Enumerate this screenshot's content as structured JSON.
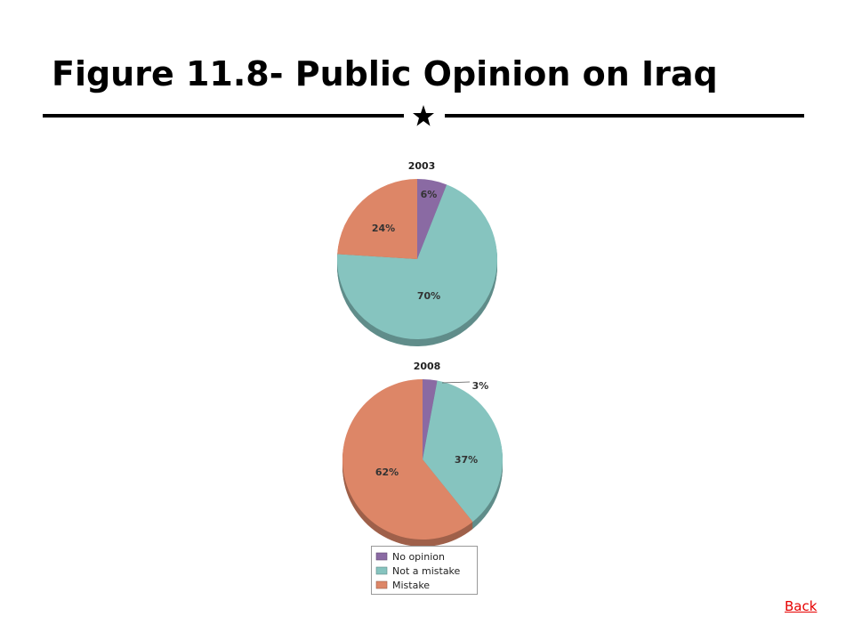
{
  "slide": {
    "title": "Figure 11.8- Public Opinion on Iraq",
    "back_link": "Back",
    "divider_icon": "star-icon"
  },
  "chart_data": {
    "type": "pie",
    "categories": [
      "No opinion",
      "Not a mistake",
      "Mistake"
    ],
    "colors": {
      "No opinion": "#8a6aa3",
      "Not a mistake": "#86c4bf",
      "Mistake": "#dd8667"
    },
    "legend_placement": "bottom-center",
    "charts": [
      {
        "title": "2003",
        "values": [
          6,
          70,
          24
        ],
        "labels": [
          "6%",
          "70%",
          "24%"
        ]
      },
      {
        "title": "2008",
        "values": [
          3,
          37,
          62
        ],
        "labels": [
          "3%",
          "37%",
          "62%"
        ]
      }
    ]
  }
}
